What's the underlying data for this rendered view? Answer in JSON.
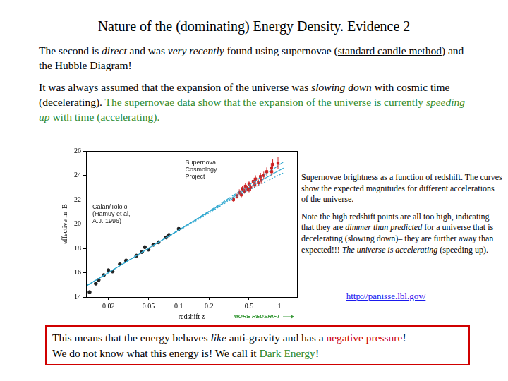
{
  "title": "Nature of the (dominating) Energy Density. Evidence 2",
  "paragraphs": [
    [
      {
        "text": "The second is "
      },
      {
        "text": "direct",
        "italic": true
      },
      {
        "text": " and was "
      },
      {
        "text": "very recently",
        "italic": true
      },
      {
        "text": " found using supernovae ("
      },
      {
        "text": "standard candle method",
        "underline": true
      },
      {
        "text": ") and the Hubble Diagram!"
      }
    ],
    [
      {
        "text": "It was always assumed that the expansion of the universe was "
      },
      {
        "text": "slowing down",
        "italic": true
      },
      {
        "text": " with cosmic time (decelerating).  "
      },
      {
        "text": "The supernovae data show that the expansion of the universe is currently ",
        "color": "#2e8b2e"
      },
      {
        "text": "speeding up",
        "italic": true,
        "color": "#2e8b2e"
      },
      {
        "text": " with time (accelerating).",
        "color": "#2e8b2e"
      }
    ]
  ],
  "chart_data": {
    "type": "scatter",
    "x_label": "redshift z",
    "y_label": "effective m_B",
    "annotation": "MORE REDSHIFT",
    "log": "x",
    "grid": false,
    "xlim": [
      0.012,
      1.5
    ],
    "xticks": [
      0.02,
      0.05,
      0.1,
      0.2,
      0.5,
      1
    ],
    "ylim": [
      14,
      26
    ],
    "yticks": [
      14,
      16,
      18,
      20,
      22,
      24,
      26
    ],
    "series": [
      {
        "type": "line",
        "color": "#2fa8d0",
        "line_style": "dashed",
        "x": [
          0.012,
          0.02,
          0.05,
          0.1,
          0.2,
          0.3,
          0.5,
          0.7,
          0.9,
          1.1
        ],
        "values": [
          14.9,
          16.0,
          18.0,
          19.5,
          21.05,
          22.0,
          23.2,
          24.0,
          24.6,
          25.1
        ]
      },
      {
        "type": "line",
        "color": "#2fa8d0",
        "line_style": "solid",
        "x": [
          0.012,
          0.02,
          0.05,
          0.1,
          0.2,
          0.3,
          0.5,
          0.7,
          0.9,
          1.1
        ],
        "values": [
          14.9,
          16.0,
          18.0,
          19.5,
          21.0,
          21.9,
          23.0,
          23.7,
          24.2,
          24.6
        ]
      },
      {
        "type": "line",
        "color": "#2fa8d0",
        "line_style": "dotted",
        "x": [
          0.012,
          0.02,
          0.05,
          0.1,
          0.2,
          0.3,
          0.5,
          0.7,
          0.9,
          1.1
        ],
        "values": [
          14.9,
          16.0,
          18.0,
          19.45,
          20.9,
          21.8,
          22.8,
          23.4,
          23.85,
          24.2
        ]
      },
      {
        "name": "Calan/Tololo (Hamuy et al, A.J. 1996)",
        "type": "scatter",
        "color": "#222222",
        "marker": "circle",
        "x": [
          0.013,
          0.015,
          0.016,
          0.018,
          0.02,
          0.022,
          0.026,
          0.03,
          0.038,
          0.043,
          0.046,
          0.05,
          0.056,
          0.063,
          0.075,
          0.08,
          0.1
        ],
        "values": [
          14.4,
          15.1,
          15.4,
          15.8,
          16.2,
          16.1,
          16.7,
          17.0,
          17.4,
          17.7,
          18.1,
          17.9,
          18.3,
          18.5,
          18.9,
          19.1,
          19.6
        ]
      },
      {
        "name": "Supernova Cosmology Project",
        "type": "scatter",
        "color": "#cc2222",
        "marker": "square",
        "x": [
          0.35,
          0.38,
          0.4,
          0.42,
          0.43,
          0.45,
          0.46,
          0.48,
          0.5,
          0.5,
          0.52,
          0.55,
          0.57,
          0.58,
          0.62,
          0.65,
          0.66,
          0.7,
          0.75,
          0.83,
          0.84,
          0.86,
          0.97
        ],
        "values": [
          22.0,
          22.3,
          22.6,
          22.4,
          22.9,
          22.7,
          23.1,
          22.9,
          23.3,
          22.8,
          23.0,
          23.5,
          23.2,
          23.7,
          23.4,
          23.9,
          23.6,
          24.0,
          24.3,
          24.6,
          24.3,
          24.9,
          25.0
        ],
        "errors": [
          0.2,
          0.2,
          0.25,
          0.2,
          0.2,
          0.2,
          0.25,
          0.2,
          0.2,
          0.2,
          0.25,
          0.3,
          0.2,
          0.3,
          0.25,
          0.3,
          0.3,
          0.3,
          0.35,
          0.4,
          0.35,
          0.4,
          0.5
        ]
      }
    ]
  },
  "caption": [
    [
      {
        "text": "Supernovae brightness as a function of redshift. The curves show the expected magnitudes for different accelerations of the universe."
      }
    ],
    [
      {
        "text": "Note the high redshift points are all too high, indicating that they are "
      },
      {
        "text": "dimmer than predicted",
        "italic": true
      },
      {
        "text": " for a universe that is decelerating (slowing down)– they are further away than expected!!! "
      },
      {
        "text": "The universe is accelerating",
        "italic": true
      },
      {
        "text": " (speeding up)."
      }
    ]
  ],
  "link": "http://panisse.lbl.gov/",
  "conclusion": [
    [
      {
        "text": "This means that the energy behaves "
      },
      {
        "text": "like",
        "italic": true
      },
      {
        "text": " anti-gravity and has a "
      },
      {
        "text": "negative pressure",
        "color": "#cc0000"
      },
      {
        "text": "!"
      }
    ],
    [
      {
        "text": "We do not know what this energy is!  We call it "
      },
      {
        "text": "Dark Energy",
        "underline": true,
        "color": "#2e8b2e"
      },
      {
        "text": "!"
      }
    ]
  ]
}
